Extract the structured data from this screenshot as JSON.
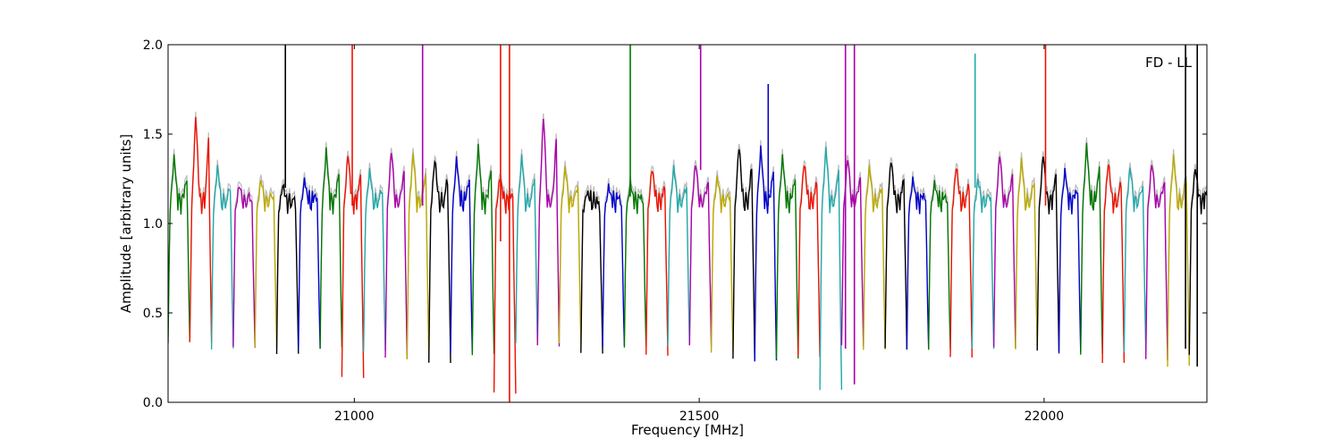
{
  "chart_data": {
    "type": "line",
    "title": "",
    "annotation": "FD - LL",
    "xlabel": "Frequency [MHz]",
    "ylabel": "Amplitude [arbitrary units]",
    "xlim": [
      20730,
      22236
    ],
    "ylim": [
      0.0,
      2.0
    ],
    "x_ticks": [
      21000,
      21500,
      22000
    ],
    "x_tick_labels": [
      "21000",
      "21500",
      "22000"
    ],
    "y_ticks": [
      0.0,
      0.5,
      1.0,
      1.5,
      2.0
    ],
    "y_tick_labels": [
      "0.0",
      "0.5",
      "1.0",
      "1.5",
      "2.0"
    ],
    "grid": false,
    "legend": "none",
    "palette": [
      "#0000cc",
      "#007700",
      "#ee1100",
      "#22aaaa",
      "#aa00aa",
      "#bbaa00",
      "#000000"
    ],
    "background_color": "#bbbbbb",
    "channel_width_mhz": 31.5,
    "channels": [
      {
        "x0": 20730,
        "peak": 1.38,
        "low": 0.33,
        "color": "#007700"
      },
      {
        "x0": 20761.5,
        "peak": 1.62,
        "low": 0.32,
        "color": "#ee1100"
      },
      {
        "x0": 20793,
        "peak": 1.32,
        "low": 0.3,
        "color": "#22aaaa"
      },
      {
        "x0": 20824.5,
        "peak": 1.22,
        "low": 0.3,
        "color": "#aa00aa"
      },
      {
        "x0": 20856,
        "peak": 1.25,
        "low": 0.29,
        "color": "#bbaa00"
      },
      {
        "x0": 20887.5,
        "peak": 1.22,
        "low": 0.29,
        "color": "#000000"
      },
      {
        "x0": 20919,
        "peak": 1.25,
        "low": 0.28,
        "color": "#0000cc"
      },
      {
        "x0": 20950.5,
        "peak": 1.42,
        "low": 0.3,
        "color": "#007700"
      },
      {
        "x0": 20982,
        "peak": 1.4,
        "low": 0.13,
        "color": "#ee1100"
      },
      {
        "x0": 21013.5,
        "peak": 1.3,
        "low": 0.28,
        "color": "#22aaaa"
      },
      {
        "x0": 21045,
        "peak": 1.42,
        "low": 0.24,
        "color": "#aa00aa"
      },
      {
        "x0": 21076.5,
        "peak": 1.4,
        "low": 0.22,
        "color": "#bbaa00"
      },
      {
        "x0": 21108,
        "peak": 1.37,
        "low": 0.24,
        "color": "#000000"
      },
      {
        "x0": 21139.5,
        "peak": 1.37,
        "low": 0.26,
        "color": "#0000cc"
      },
      {
        "x0": 21171,
        "peak": 1.44,
        "low": 0.26,
        "color": "#007700"
      },
      {
        "x0": 21202.5,
        "peak": 1.27,
        "low": 0.05,
        "color": "#ee1100"
      },
      {
        "x0": 21234,
        "peak": 1.38,
        "low": 0.32,
        "color": "#22aaaa"
      },
      {
        "x0": 21265.5,
        "peak": 1.62,
        "low": 0.31,
        "color": "#aa00aa"
      },
      {
        "x0": 21297,
        "peak": 1.32,
        "low": 0.31,
        "color": "#bbaa00"
      },
      {
        "x0": 21328.5,
        "peak": 1.18,
        "low": 0.29,
        "color": "#000000"
      },
      {
        "x0": 21360,
        "peak": 1.21,
        "low": 0.3,
        "color": "#0000cc"
      },
      {
        "x0": 21391.5,
        "peak": 1.23,
        "low": 0.3,
        "color": "#007700"
      },
      {
        "x0": 21423,
        "peak": 1.32,
        "low": 0.27,
        "color": "#ee1100"
      },
      {
        "x0": 21454.5,
        "peak": 1.32,
        "low": 0.3,
        "color": "#22aaaa"
      },
      {
        "x0": 21486,
        "peak": 1.35,
        "low": 0.31,
        "color": "#aa00aa"
      },
      {
        "x0": 21517.5,
        "peak": 1.26,
        "low": 0.26,
        "color": "#bbaa00"
      },
      {
        "x0": 21549,
        "peak": 1.45,
        "low": 0.25,
        "color": "#000000"
      },
      {
        "x0": 21580.5,
        "peak": 1.43,
        "low": 0.22,
        "color": "#0000cc"
      },
      {
        "x0": 21612,
        "peak": 1.38,
        "low": 0.23,
        "color": "#007700"
      },
      {
        "x0": 21643.5,
        "peak": 1.35,
        "low": 0.27,
        "color": "#ee1100"
      },
      {
        "x0": 21675,
        "peak": 1.43,
        "low": 0.05,
        "color": "#22aaaa"
      },
      {
        "x0": 21706.5,
        "peak": 1.38,
        "low": 0.31,
        "color": "#aa00aa"
      },
      {
        "x0": 21738,
        "peak": 1.32,
        "low": 0.28,
        "color": "#bbaa00"
      },
      {
        "x0": 21769.5,
        "peak": 1.37,
        "low": 0.3,
        "color": "#000000"
      },
      {
        "x0": 21801,
        "peak": 1.25,
        "low": 0.29,
        "color": "#0000cc"
      },
      {
        "x0": 21832.5,
        "peak": 1.23,
        "low": 0.28,
        "color": "#007700"
      },
      {
        "x0": 21864,
        "peak": 1.33,
        "low": 0.27,
        "color": "#ee1100"
      },
      {
        "x0": 21895.5,
        "peak": 1.25,
        "low": 0.28,
        "color": "#22aaaa"
      },
      {
        "x0": 21927,
        "peak": 1.4,
        "low": 0.3,
        "color": "#aa00aa"
      },
      {
        "x0": 21958.5,
        "peak": 1.36,
        "low": 0.29,
        "color": "#bbaa00"
      },
      {
        "x0": 21990,
        "peak": 1.4,
        "low": 0.28,
        "color": "#000000"
      },
      {
        "x0": 22021.5,
        "peak": 1.3,
        "low": 0.27,
        "color": "#0000cc"
      },
      {
        "x0": 22053,
        "peak": 1.45,
        "low": 0.25,
        "color": "#007700"
      },
      {
        "x0": 22084.5,
        "peak": 1.35,
        "low": 0.24,
        "color": "#ee1100"
      },
      {
        "x0": 22116,
        "peak": 1.32,
        "low": 0.26,
        "color": "#22aaaa"
      },
      {
        "x0": 22147.5,
        "peak": 1.35,
        "low": 0.23,
        "color": "#aa00aa"
      },
      {
        "x0": 22179,
        "peak": 1.38,
        "low": 0.2,
        "color": "#bbaa00"
      },
      {
        "x0": 22210.5,
        "peak": 1.32,
        "low": 0.25,
        "color": "#000000"
      }
    ],
    "spikes": [
      {
        "x": 20900,
        "y0": 1.2,
        "y1": 2.0,
        "color": "#000000"
      },
      {
        "x": 20997,
        "y0": 1.1,
        "y1": 2.0,
        "color": "#ee1100"
      },
      {
        "x": 21099,
        "y0": 1.1,
        "y1": 2.0,
        "color": "#aa00aa"
      },
      {
        "x": 21212,
        "y0": 0.9,
        "y1": 2.0,
        "color": "#ee1100"
      },
      {
        "x": 21225,
        "y0": 0.0,
        "y1": 2.0,
        "color": "#ee1100"
      },
      {
        "x": 21400,
        "y0": 1.15,
        "y1": 2.0,
        "color": "#007700"
      },
      {
        "x": 21502,
        "y0": 1.3,
        "y1": 2.0,
        "color": "#aa00aa"
      },
      {
        "x": 21600,
        "y0": 1.1,
        "y1": 1.78,
        "color": "#0000cc"
      },
      {
        "x": 21712,
        "y0": 0.3,
        "y1": 2.0,
        "color": "#aa00aa"
      },
      {
        "x": 21725,
        "y0": 0.1,
        "y1": 2.0,
        "color": "#aa00aa"
      },
      {
        "x": 21900,
        "y0": 1.2,
        "y1": 1.95,
        "color": "#22aaaa"
      },
      {
        "x": 22002,
        "y0": 1.1,
        "y1": 2.0,
        "color": "#ee1100"
      },
      {
        "x": 22205,
        "y0": 0.3,
        "y1": 2.0,
        "color": "#000000"
      },
      {
        "x": 22222,
        "y0": 0.2,
        "y1": 2.0,
        "color": "#000000"
      }
    ]
  }
}
